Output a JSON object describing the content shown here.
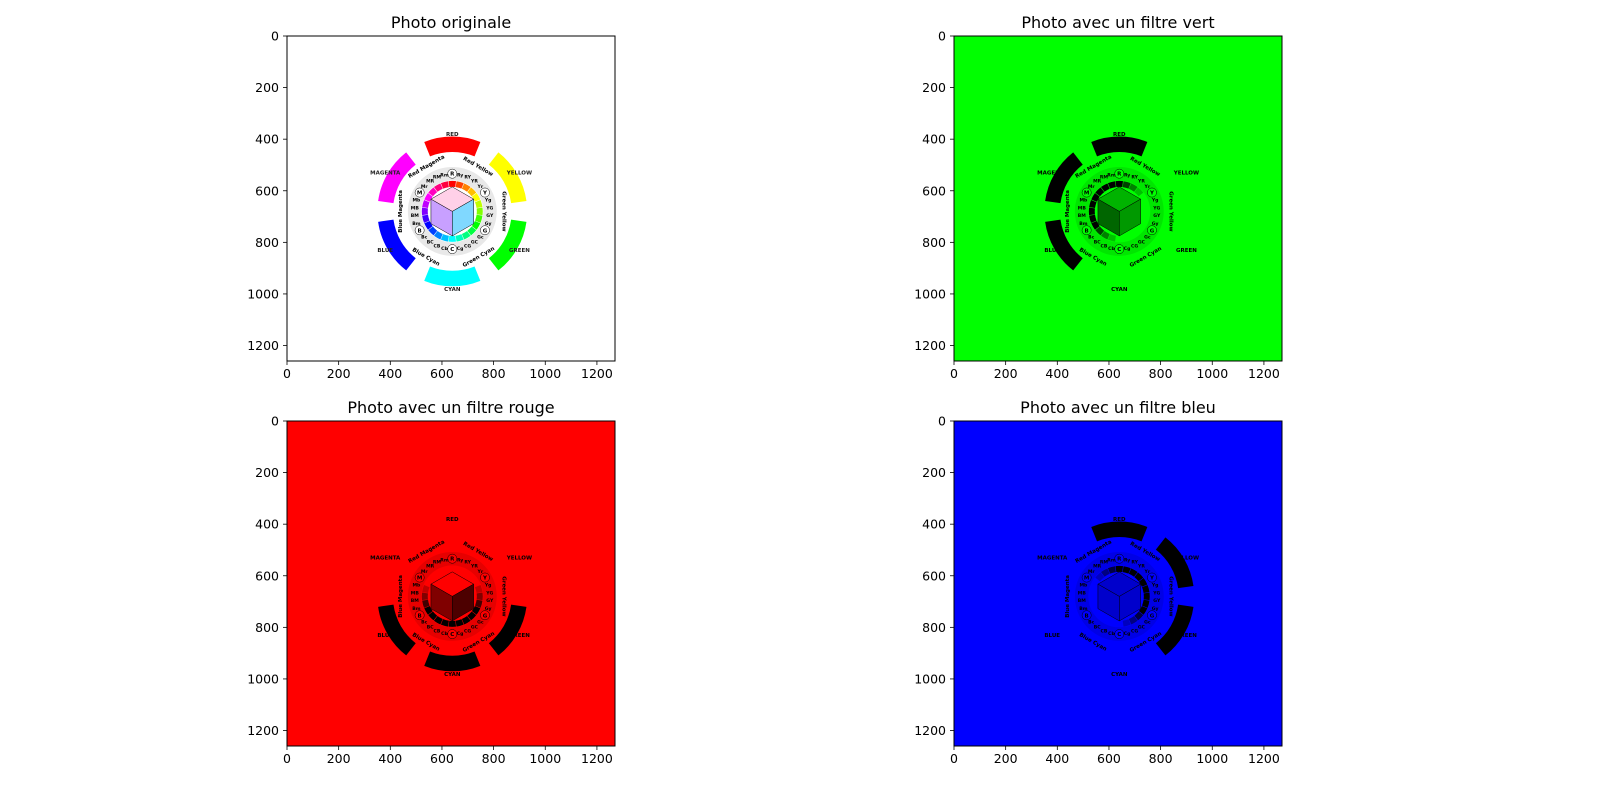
{
  "figure": {
    "panels": [
      {
        "title": "Photo originale",
        "filter": "none",
        "background": "#ffffff",
        "foreground": "#000000"
      },
      {
        "title": "Photo avec un filtre vert",
        "filter": "green",
        "background": "#00ff00",
        "foreground": "#000000"
      },
      {
        "title": "Photo avec un filtre rouge",
        "filter": "red",
        "background": "#ff0000",
        "foreground": "#000000"
      },
      {
        "title": "Photo avec un filtre bleu",
        "filter": "blue",
        "background": "#0000ff",
        "foreground": "#000000"
      }
    ],
    "wheel": {
      "primaries": [
        "RED",
        "YELLOW",
        "GREEN",
        "CYAN",
        "BLUE",
        "MAGENTA"
      ],
      "secondary_labels": [
        "Red Yellow",
        "Green Yellow",
        "Green Cyan",
        "Blue Cyan",
        "Blue Magenta",
        "Red Magenta"
      ],
      "code_letters": [
        "R",
        "Y",
        "G",
        "C",
        "B",
        "M"
      ],
      "cells": [
        "Ry",
        "RY",
        "YR",
        "Yr",
        "Yg",
        "YG",
        "GY",
        "Gy",
        "Gc",
        "GC",
        "CG",
        "Cg",
        "Cb",
        "CB",
        "BC",
        "Bc",
        "Bm",
        "BM",
        "MB",
        "Mb",
        "Mr",
        "MR",
        "RM",
        "Rm"
      ]
    }
  },
  "chart_data": [
    {
      "type": "image",
      "title": "Photo originale",
      "xlim": [
        0,
        1270
      ],
      "ylim": [
        1260,
        0
      ],
      "xticks": [
        0,
        200,
        400,
        600,
        800,
        1000,
        1200
      ],
      "yticks": [
        0,
        200,
        400,
        600,
        800,
        1000,
        1200
      ]
    },
    {
      "type": "image",
      "title": "Photo avec un filtre vert",
      "xlim": [
        0,
        1270
      ],
      "ylim": [
        1260,
        0
      ],
      "xticks": [
        0,
        200,
        400,
        600,
        800,
        1000,
        1200
      ],
      "yticks": [
        0,
        200,
        400,
        600,
        800,
        1000,
        1200
      ]
    },
    {
      "type": "image",
      "title": "Photo avec un filtre rouge",
      "xlim": [
        0,
        1270
      ],
      "ylim": [
        1260,
        0
      ],
      "xticks": [
        0,
        200,
        400,
        600,
        800,
        1000,
        1200
      ],
      "yticks": [
        0,
        200,
        400,
        600,
        800,
        1000,
        1200
      ]
    },
    {
      "type": "image",
      "title": "Photo avec un filtre bleu",
      "xlim": [
        0,
        1270
      ],
      "ylim": [
        1260,
        0
      ],
      "xticks": [
        0,
        200,
        400,
        600,
        800,
        1000,
        1200
      ],
      "yticks": [
        0,
        200,
        400,
        600,
        800,
        1000,
        1200
      ]
    }
  ]
}
